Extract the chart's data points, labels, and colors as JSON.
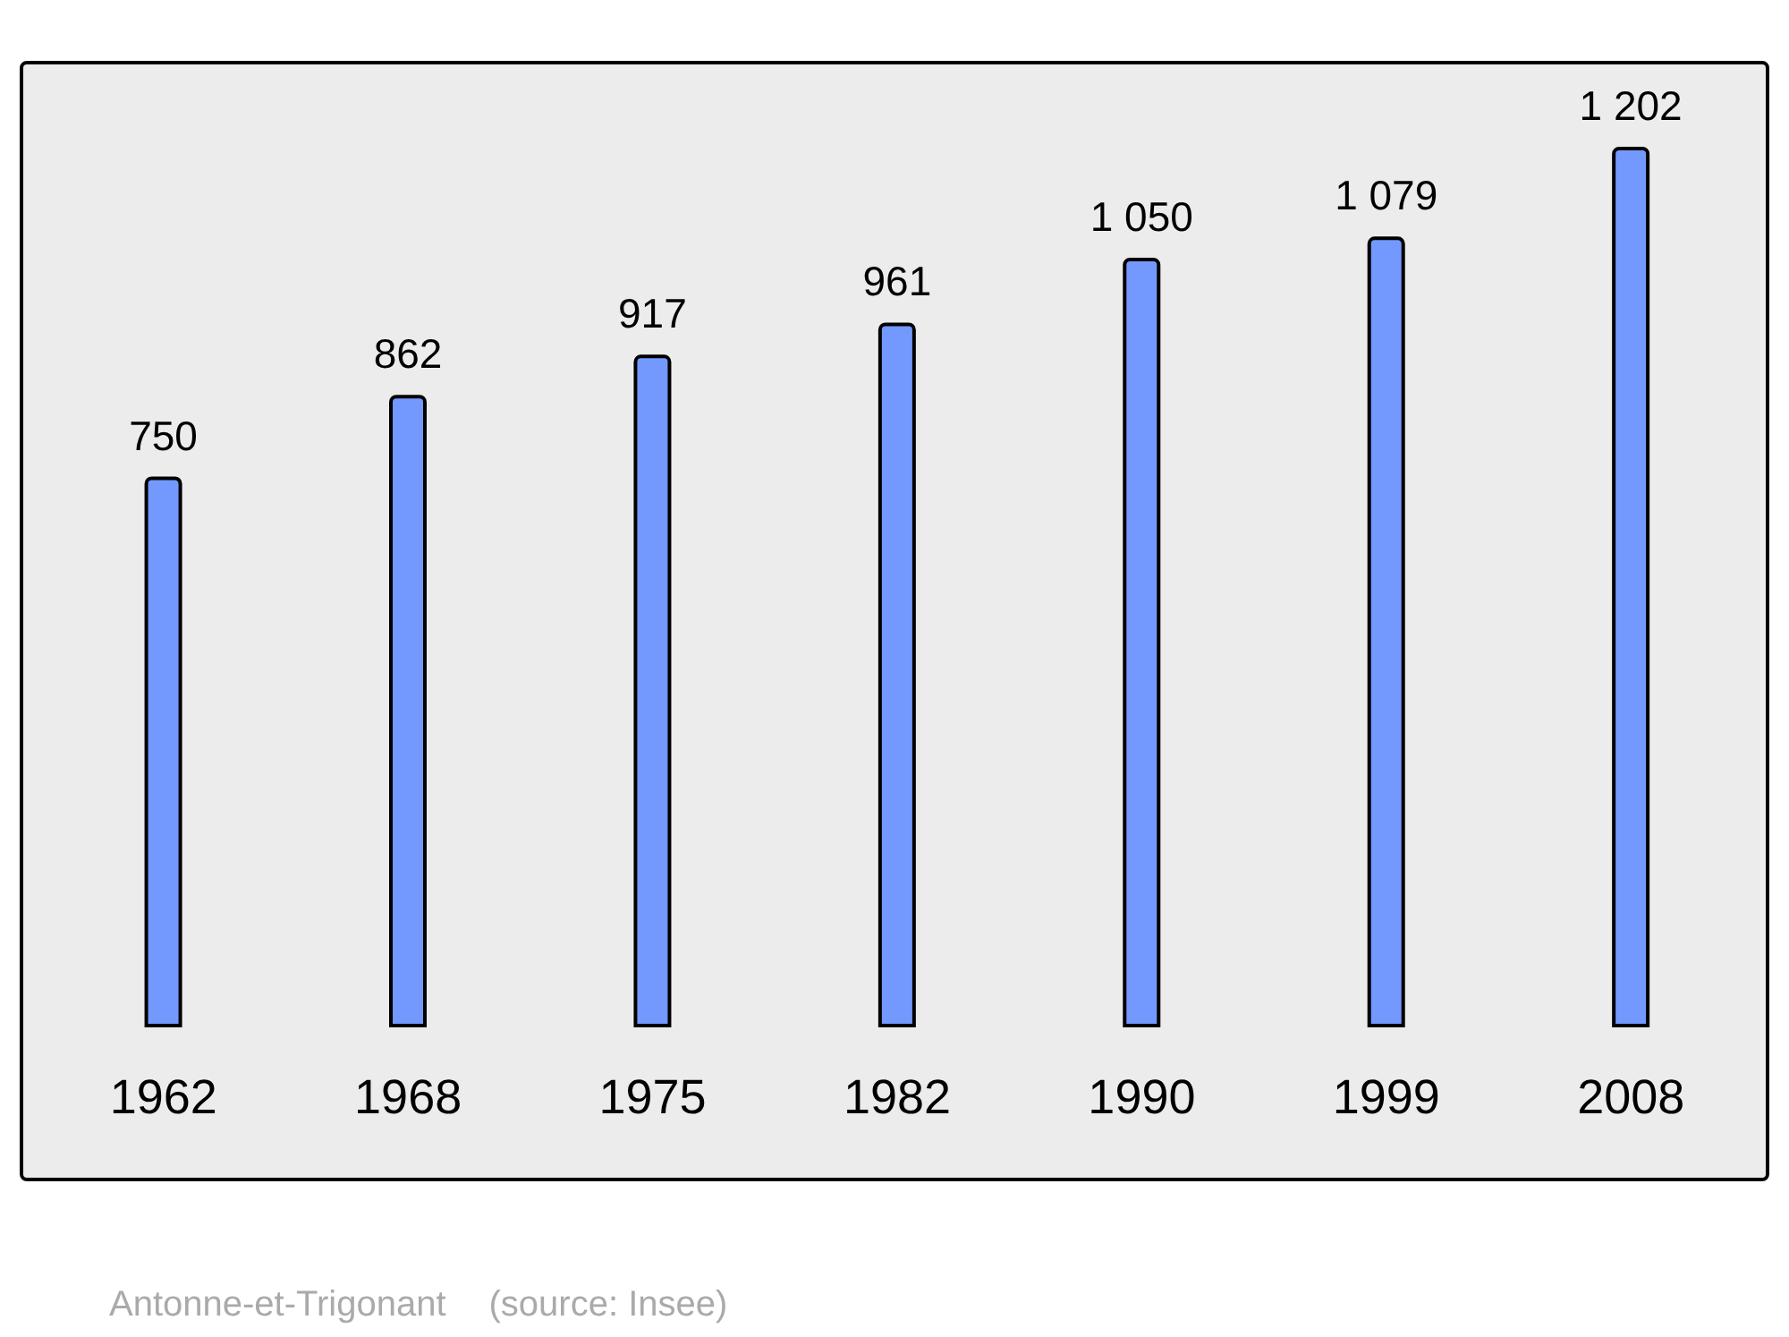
{
  "chart_data": {
    "type": "bar",
    "categories": [
      "1962",
      "1968",
      "1975",
      "1982",
      "1990",
      "1999",
      "2008"
    ],
    "values": [
      750,
      862,
      917,
      961,
      1050,
      1079,
      1202
    ],
    "value_labels": [
      "750",
      "862",
      "917",
      "961",
      "1 050",
      "1 079",
      "1 202"
    ],
    "color": "#7399ff",
    "annotations": [
      "Antonne-et-Trigonant",
      "(source: Insee)"
    ]
  }
}
